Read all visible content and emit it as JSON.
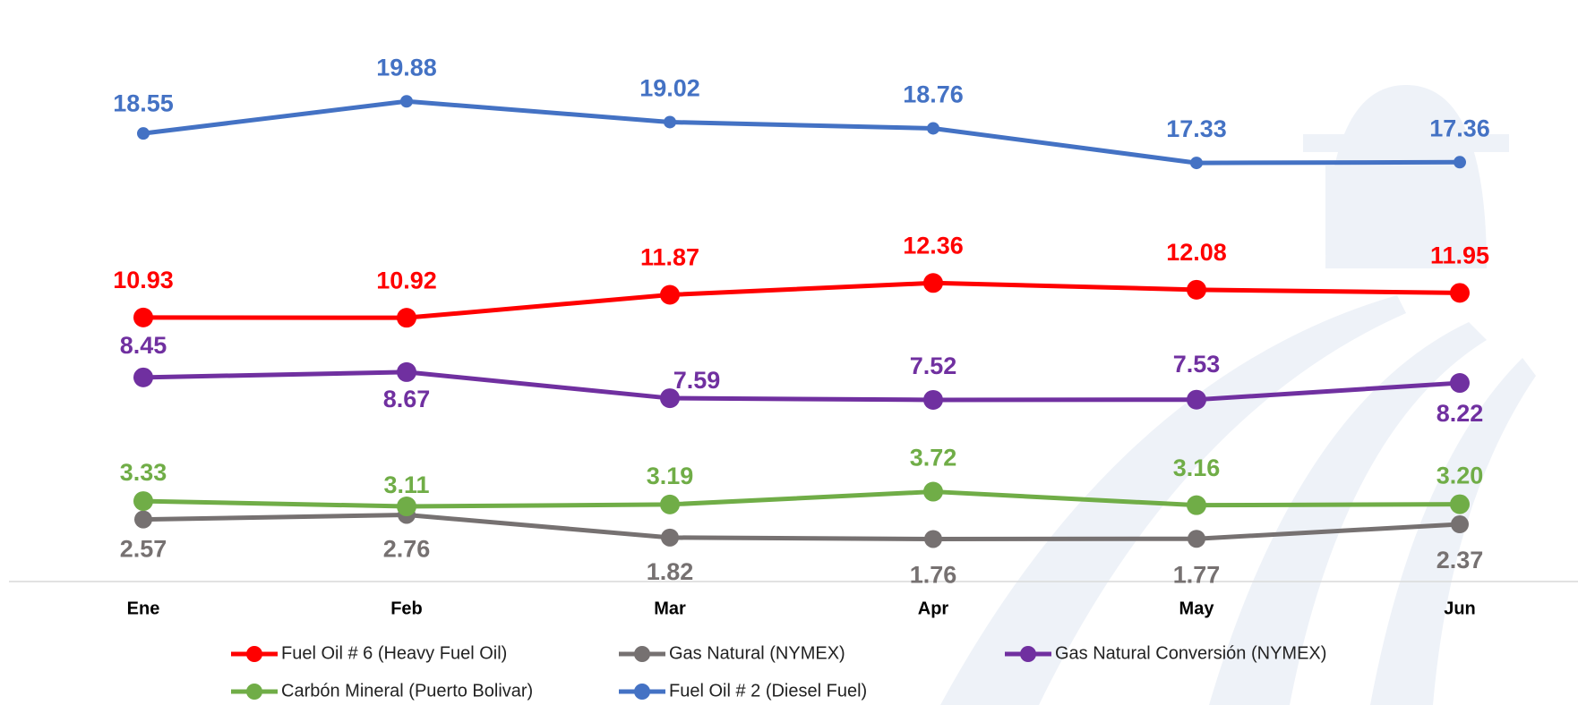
{
  "chart_data": {
    "type": "line",
    "categories": [
      "Ene",
      "Feb",
      "Mar",
      "Apr",
      "May",
      "Jun"
    ],
    "series": [
      {
        "name": "Fuel Oil # 6 (Heavy Fuel Oil)",
        "color": "#ff0000",
        "values": [
          10.93,
          10.92,
          11.87,
          12.36,
          12.08,
          11.95
        ]
      },
      {
        "name": "Gas Natural (NYMEX)",
        "color": "#767171",
        "values": [
          2.57,
          2.76,
          1.82,
          1.76,
          1.77,
          2.37
        ]
      },
      {
        "name": "Gas Natural Conversión (NYMEX)",
        "color": "#7030a0",
        "values": [
          8.45,
          8.67,
          7.59,
          7.52,
          7.53,
          8.22
        ]
      },
      {
        "name": "Carbón Mineral (Puerto Bolivar)",
        "color": "#70ad47",
        "values": [
          3.33,
          3.11,
          3.19,
          3.72,
          3.16,
          3.2
        ]
      },
      {
        "name": "Fuel Oil # 2 (Diesel Fuel)",
        "color": "#4472c4",
        "values": [
          18.55,
          19.88,
          19.02,
          18.76,
          17.33,
          17.36
        ]
      }
    ],
    "value_labels": [
      [
        "10.93",
        "10.92",
        "11.87",
        "12.36",
        "12.08",
        "11.95"
      ],
      [
        "2.57",
        "2.76",
        "1.82",
        "1.76",
        "1.77",
        "2.37"
      ],
      [
        "8.45",
        "8.67",
        "7.59",
        "7.52",
        "7.53",
        "8.22"
      ],
      [
        "3.33",
        "3.11",
        "3.19",
        "3.72",
        "3.16",
        "3.20"
      ],
      [
        "18.55",
        "19.88",
        "19.02",
        "18.76",
        "17.33",
        "17.36"
      ]
    ],
    "legend": "bottom"
  }
}
